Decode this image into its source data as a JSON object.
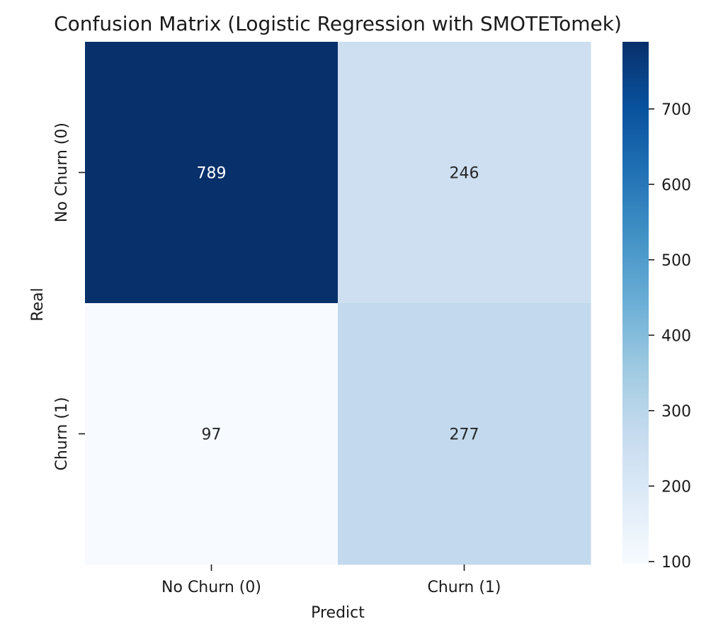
{
  "chart_data": {
    "type": "heatmap",
    "title": "Confusion Matrix (Logistic Regression with SMOTETomek)",
    "xlabel": "Predict",
    "ylabel": "Real",
    "x_categories": [
      "No Churn (0)",
      "Churn (1)"
    ],
    "y_categories": [
      "No Churn (0)",
      "Churn (1)"
    ],
    "values": [
      [
        789,
        246
      ],
      [
        97,
        277
      ]
    ],
    "colorbar": {
      "min": 97,
      "max": 789,
      "ticks": [
        100,
        200,
        300,
        400,
        500,
        600,
        700
      ],
      "colormap": "Blues"
    },
    "text_colors": {
      "dark": "#262626",
      "light": "#ffffff"
    }
  }
}
